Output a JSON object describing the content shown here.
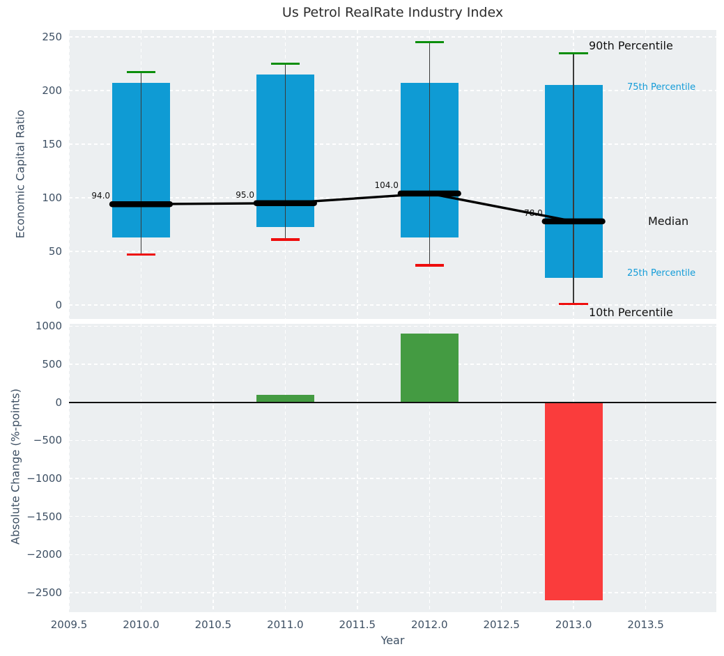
{
  "title": "Us Petrol RealRate Industry Index",
  "colors": {
    "box": "#0f9bd4",
    "median": "#000000",
    "whisker": "#3a3a3a",
    "cap_high": "#0b8e0b",
    "cap_low": "#ee0d0d",
    "bar_up": "#449b42",
    "bar_down": "#fa3c3c",
    "plot_bg": "#eceff1",
    "grid": "#ffffff",
    "tick_text": "#3d4f63",
    "annotation_blue": "#149cd8",
    "zero_line": "#111111"
  },
  "chart_data": [
    {
      "type": "box_whisker_trace",
      "title": "Us Petrol RealRate Industry Index",
      "ylabel": "Economic Capital Ratio",
      "x": [
        2010,
        2011,
        2012,
        2013
      ],
      "series": [
        {
          "name": "90th Percentile",
          "values": [
            217,
            225,
            245,
            235
          ]
        },
        {
          "name": "75th Percentile",
          "values": [
            207,
            215,
            207,
            205
          ]
        },
        {
          "name": "Median",
          "values": [
            94,
            95,
            104,
            78
          ]
        },
        {
          "name": "25th Percentile",
          "values": [
            63,
            73,
            63,
            25
          ]
        },
        {
          "name": "10th Percentile",
          "values": [
            47,
            61,
            37,
            1
          ]
        }
      ],
      "median_labels": [
        "94.0",
        "95.0",
        "104.0",
        "78.0"
      ],
      "yticks": {
        "values": [
          0,
          50,
          100,
          150,
          200,
          250
        ],
        "labels": [
          "0",
          "50",
          "100",
          "150",
          "200",
          "250"
        ]
      },
      "xgrid_values": [
        2009.5,
        2010.0,
        2010.5,
        2011.0,
        2011.5,
        2012.0,
        2012.5,
        2013.0,
        2013.5
      ],
      "xlim": [
        2009.5,
        2013.99
      ],
      "ylim": [
        -13,
        256.5
      ],
      "box_width": 0.4,
      "cap_width": 0.1,
      "grid": true,
      "annotations": {
        "p90": "90th Percentile",
        "p75": "75th Percentile",
        "median": "Median",
        "p25": "25th Percentile",
        "p10": "10th Percentile"
      }
    },
    {
      "type": "bar",
      "xlabel": "Year",
      "ylabel": "Absolute Change (%-points)",
      "x": [
        2011,
        2012,
        2013
      ],
      "values": [
        100,
        900,
        -2600
      ],
      "bar_width": 0.4,
      "yticks": {
        "values": [
          1000,
          500,
          0,
          -500,
          -1000,
          -1500,
          -2000,
          -2500
        ],
        "labels": [
          "1000",
          "500",
          "0",
          "−500",
          "−1000",
          "−1500",
          "−2000",
          "−2500"
        ]
      },
      "xticks": {
        "values": [
          2009.5,
          2010.0,
          2010.5,
          2011.0,
          2011.5,
          2012.0,
          2012.5,
          2013.0,
          2013.5
        ],
        "labels": [
          "2009.5",
          "2010.0",
          "2010.5",
          "2011.0",
          "2011.5",
          "2012.0",
          "2012.5",
          "2013.0",
          "2013.5"
        ]
      },
      "xlim": [
        2009.5,
        2013.99
      ],
      "ylim": [
        -2756,
        1031
      ],
      "grid": true
    }
  ]
}
